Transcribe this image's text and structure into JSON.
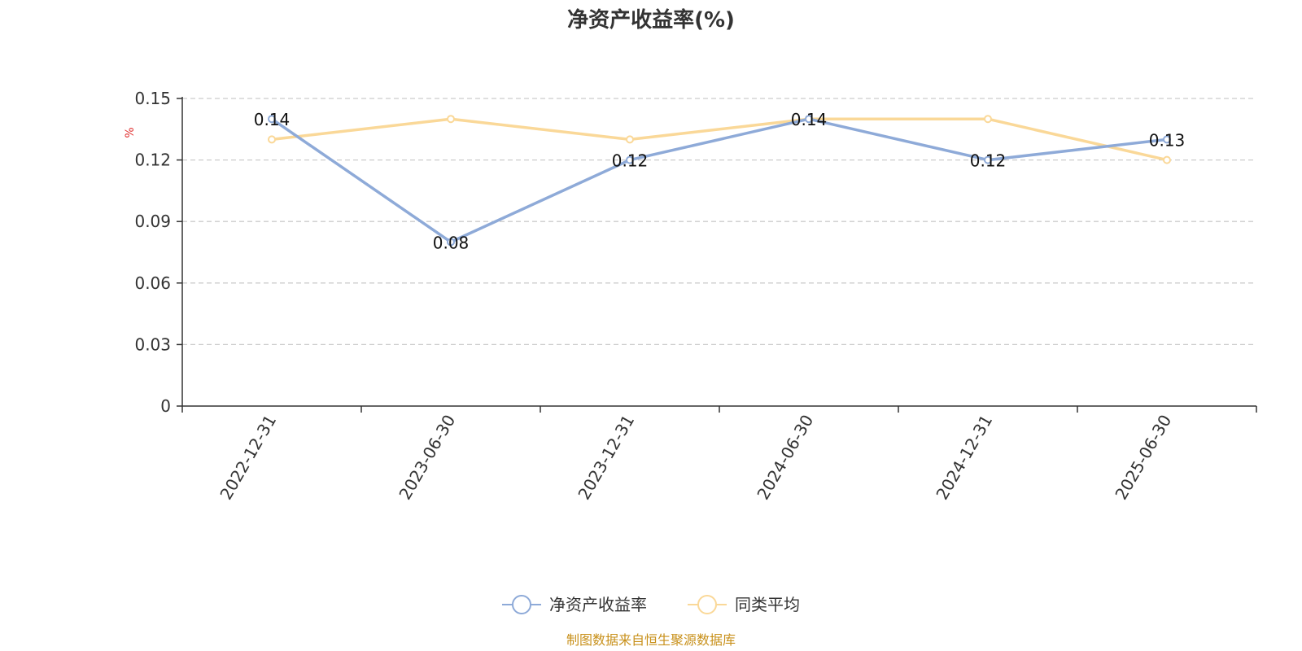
{
  "chart_data": {
    "type": "line",
    "title": "净资产收益率(%)",
    "ylabel": "%",
    "categories": [
      "2022-12-31",
      "2023-06-30",
      "2023-12-31",
      "2024-06-30",
      "2024-12-31",
      "2025-06-30"
    ],
    "y_ticks": [
      "0",
      "0.03",
      "0.06",
      "0.09",
      "0.12",
      "0.15"
    ],
    "ylim": [
      0,
      0.15
    ],
    "grid": true,
    "legend_position": "bottom-center",
    "series": [
      {
        "name": "净资产收益率",
        "color": "#8eaad8",
        "values": [
          0.14,
          0.08,
          0.12,
          0.14,
          0.12,
          0.13
        ],
        "labels": [
          "0.14",
          "0.08",
          "0.12",
          "0.14",
          "0.12",
          "0.13"
        ]
      },
      {
        "name": "同类平均",
        "color": "#fad898",
        "values": [
          0.13,
          0.14,
          0.13,
          0.14,
          0.14,
          0.12
        ]
      }
    ],
    "source": "制图数据来自恒生聚源数据库"
  }
}
